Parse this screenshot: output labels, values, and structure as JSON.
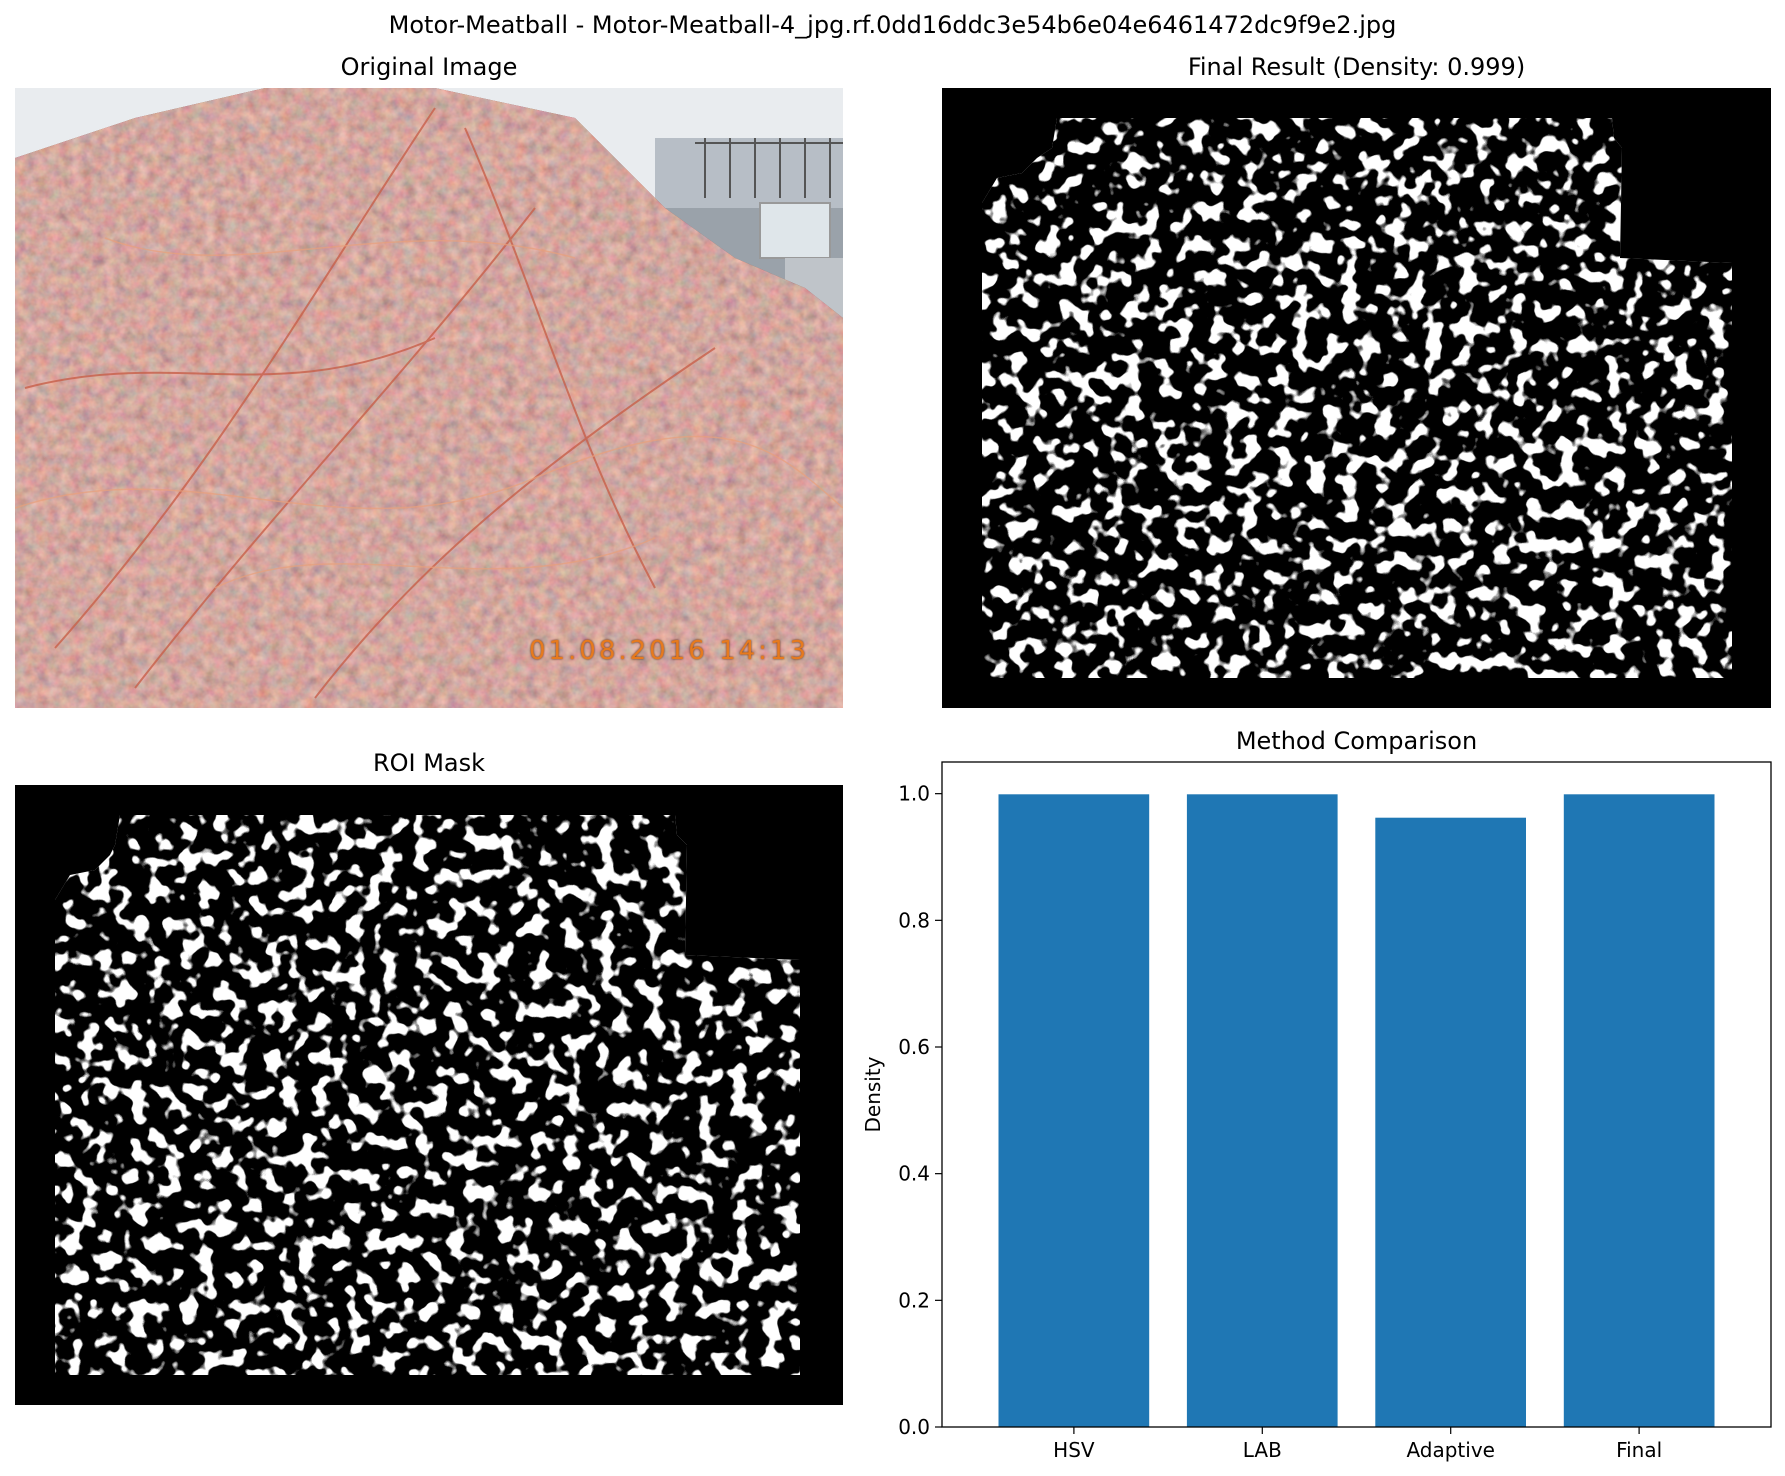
{
  "figure": {
    "suptitle": "Motor-Meatball - Motor-Meatball-4_jpg.rf.0dd16ddc3e54b6e04e6461472dc9f9e2.jpg"
  },
  "panels": {
    "original": {
      "title": "Original Image",
      "timestamp": "01.08.2016 14:13"
    },
    "final": {
      "title": "Final Result (Density: 0.999)"
    },
    "roi": {
      "title": "ROI Mask"
    }
  },
  "chart_data": {
    "type": "bar",
    "title": "Method Comparison",
    "xlabel": "",
    "ylabel": "Density",
    "categories": [
      "HSV",
      "LAB",
      "Adaptive",
      "Final"
    ],
    "values": [
      0.999,
      0.999,
      0.962,
      0.999
    ],
    "ylim": [
      0,
      1.05
    ],
    "yticks": [
      0.0,
      0.2,
      0.4,
      0.6,
      0.8,
      1.0
    ],
    "ytick_labels": [
      "0.0",
      "0.2",
      "0.4",
      "0.6",
      "0.8",
      "1.0"
    ],
    "bar_color": "#1f77b4",
    "grid": false
  }
}
